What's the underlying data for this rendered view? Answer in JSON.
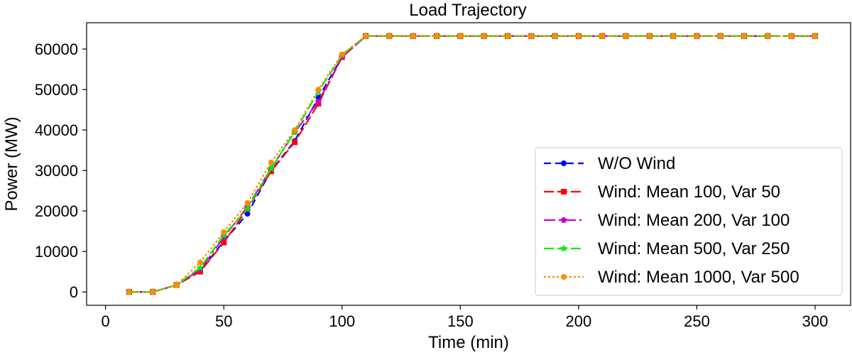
{
  "chart_data": {
    "type": "line",
    "title": "Load Trajectory",
    "xlabel": "Time (min)",
    "ylabel": "Power (MW)",
    "xlim": [
      -8,
      315
    ],
    "ylim": [
      -3300,
      66500
    ],
    "xticks": [
      0,
      50,
      100,
      150,
      200,
      250,
      300
    ],
    "yticks": [
      0,
      10000,
      20000,
      30000,
      40000,
      50000,
      60000
    ],
    "grid": false,
    "legend_position": "lower-right",
    "x": [
      10,
      20,
      30,
      40,
      50,
      60,
      70,
      80,
      90,
      100,
      110,
      120,
      130,
      140,
      150,
      160,
      170,
      180,
      190,
      200,
      210,
      220,
      230,
      240,
      250,
      260,
      270,
      280,
      290,
      300
    ],
    "series": [
      {
        "name": "W/O Wind",
        "color": "#0000ff",
        "dash": "10,6",
        "marker": "circle",
        "values": [
          0,
          0,
          1700,
          5200,
          12500,
          19300,
          30000,
          37300,
          48000,
          58000,
          63200,
          63200,
          63200,
          63200,
          63200,
          63200,
          63200,
          63200,
          63200,
          63200,
          63200,
          63200,
          63200,
          63200,
          63200,
          63200,
          63200,
          63200,
          63200,
          63200
        ]
      },
      {
        "name": "Wind: Mean 100, Var 50",
        "color": "#ff0000",
        "dash": "14,5",
        "marker": "square",
        "values": [
          0,
          0,
          1700,
          5000,
          12200,
          20500,
          29800,
          37000,
          46500,
          58000,
          63200,
          63200,
          63200,
          63200,
          63200,
          63200,
          63200,
          63200,
          63200,
          63200,
          63200,
          63200,
          63200,
          63200,
          63200,
          63200,
          63200,
          63200,
          63200,
          63200
        ]
      },
      {
        "name": "Wind: Mean 200, Var 100",
        "color": "#cc00cc",
        "dash": "16,5,3,5",
        "marker": "pentagon",
        "values": [
          0,
          0,
          1700,
          5500,
          13500,
          21000,
          30500,
          39500,
          47000,
          58000,
          63200,
          63200,
          63200,
          63200,
          63200,
          63200,
          63200,
          63200,
          63200,
          63200,
          63200,
          63200,
          63200,
          63200,
          63200,
          63200,
          63200,
          63200,
          63200,
          63200
        ]
      },
      {
        "name": "Wind: Mean 500, Var 250",
        "color": "#00ee00",
        "dash": "14,5",
        "marker": "star",
        "values": [
          0,
          0,
          1700,
          6000,
          14000,
          20500,
          30500,
          39500,
          49500,
          58500,
          63200,
          63200,
          63200,
          63200,
          63200,
          63200,
          63200,
          63200,
          63200,
          63200,
          63200,
          63200,
          63200,
          63200,
          63200,
          63200,
          63200,
          63200,
          63200,
          63200
        ]
      },
      {
        "name": "Wind: Mean 1000, Var 500",
        "color": "#ff8c00",
        "dash": "3,3",
        "marker": "circle",
        "values": [
          0,
          0,
          1700,
          7300,
          14800,
          22000,
          32000,
          40000,
          50000,
          58700,
          63200,
          63200,
          63200,
          63200,
          63200,
          63200,
          63200,
          63200,
          63200,
          63200,
          63200,
          63200,
          63200,
          63200,
          63200,
          63200,
          63200,
          63200,
          63200,
          63200
        ]
      }
    ]
  }
}
